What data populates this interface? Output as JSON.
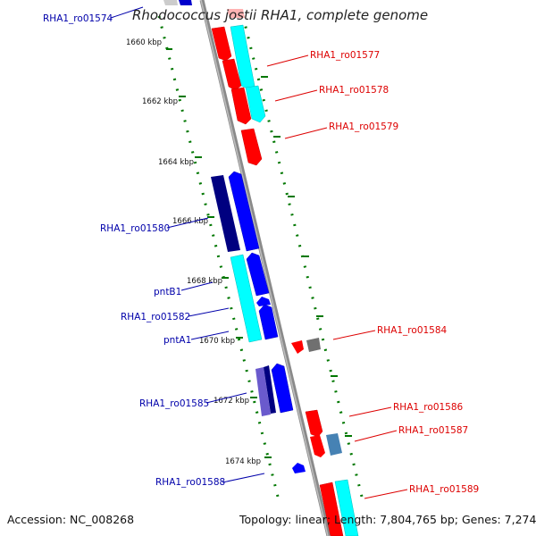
{
  "title": "Rhodococcus jostii RHA1, complete genome",
  "accession": "Accession: NC_008268",
  "topology": "Topology: linear; Length: 7,804,765 bp; Genes: 7,274",
  "colors": {
    "forward_gene": "#ff0000",
    "reverse_gene": "#0000ff",
    "operon_cyan": "#00ffff",
    "operon_navy": "#000080",
    "backbone": "#808080",
    "scale_green": "#007700",
    "label_red": "#dd0000",
    "label_blue": "#0000aa"
  },
  "scale_ticks": [
    "1660 kbp",
    "1662 kbp",
    "1664 kbp",
    "1666 kbp",
    "1668 kbp",
    "1670 kbp",
    "1672 kbp",
    "1674 kbp"
  ],
  "genes_left": [
    "RHA1_ro01574",
    "RHA1_ro01580",
    "pntB1",
    "RHA1_ro01582",
    "pntA1",
    "RHA1_ro01585",
    "RHA1_ro01588"
  ],
  "genes_right": [
    "RHA1_ro01577",
    "RHA1_ro01578",
    "RHA1_ro01579",
    "RHA1_ro01584",
    "RHA1_ro01586",
    "RHA1_ro01587",
    "RHA1_ro01589"
  ]
}
